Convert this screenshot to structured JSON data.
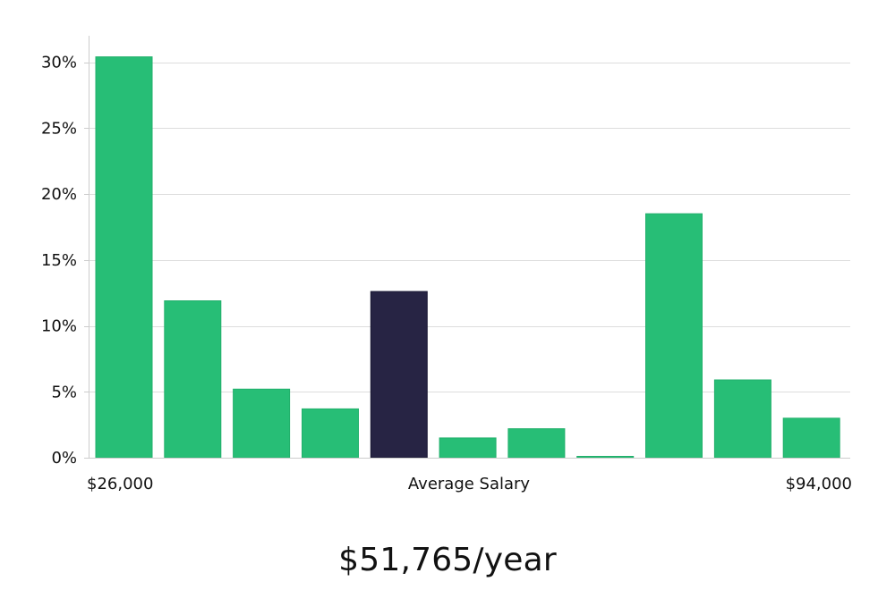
{
  "chart_data": {
    "type": "bar",
    "categories": [
      "1",
      "2",
      "3",
      "4",
      "5",
      "6",
      "7",
      "8",
      "9",
      "10",
      "11"
    ],
    "values": [
      30.4,
      11.9,
      5.2,
      3.7,
      12.6,
      1.5,
      2.2,
      0.1,
      18.5,
      5.9,
      3.0
    ],
    "highlight_index": 4,
    "ylim": [
      0,
      32
    ],
    "yticks": [
      0,
      5,
      10,
      15,
      20,
      25,
      30
    ],
    "ytick_labels": [
      "0%",
      "5%",
      "10%",
      "15%",
      "20%",
      "25%",
      "30%"
    ],
    "x_labels": {
      "left": "$26,000",
      "center": "Average Salary",
      "right": "$94,000"
    },
    "grid": true,
    "colors": {
      "bar": "#27be76",
      "highlight": "#272444",
      "grid": "#dddddd",
      "axis": "#cccccc"
    }
  },
  "average_salary": "$51,765/year"
}
